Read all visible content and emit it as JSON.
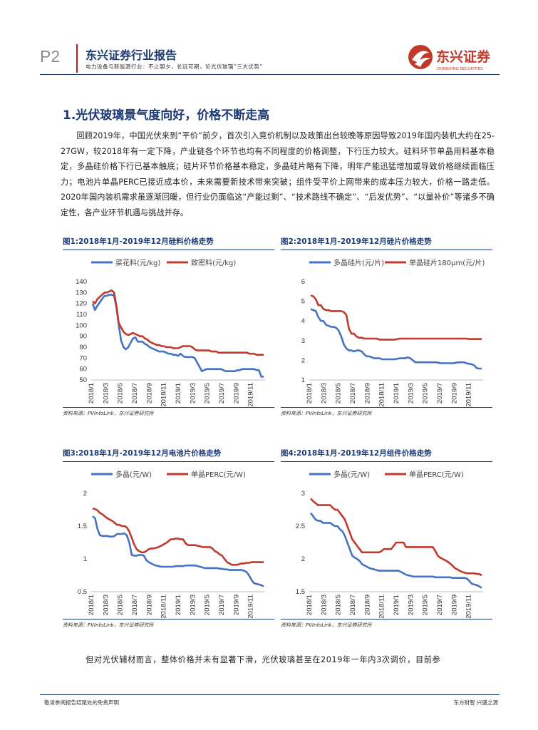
{
  "header": {
    "page_no": "P2",
    "brand": "东兴证券行业报告",
    "subtitle": "电力设备与新能源行业：不止朝夕，长远可期，论光伏玻璃“三大优势”",
    "logo_cn": "东兴证券",
    "logo_en": "DONGXING SECURITIES"
  },
  "section_title": "1.光伏玻璃景气度向好，价格不断走高",
  "paragraph": "回顾2019年，中国光伏来到“平价”前夕，首次引入竞价机制以及政策出台较晚等原因导致2019年国内装机大约在25-27GW，较2018年有一定下降，产业链各个环节也均有不同程度的价格调整，下行压力较大。硅料环节单晶用料基本稳定，多晶硅价格下行已基本触底；硅片环节价格基本稳定，多晶硅片略有下降，明年产能迅猛增加或导致价格继续面临压力；电池片单晶PERC已接近成本价，未来需要新技术带来突破；组件受平价上网带来的成本压力较大，价格一路走低。2020年国内装机需求虽逐渐回暖，但行业仍面临这“产能过剩”、“技术路线不确定”、“后发优势”、“以量补价”等诸多不确定性，各产业环节机遇与挑战并存。",
  "source_text": "资料来源：PVInfoLink，东兴证券研究所",
  "last_line": "但对光伏辅材而言，整体价格并未有显著下滑，光伏玻璃甚至在2019年一年内3次调价，目前参",
  "footer": {
    "left": "敬请参阅报告结尾处的免责声明",
    "right": "东方财智 兴盛之源"
  },
  "colors": {
    "navy": "#1c3a75",
    "blue": "#4472c4",
    "red": "#c0392b"
  },
  "chart_data": [
    {
      "type": "line",
      "title": "图1:2018年1月-2019年12月硅料价格走势",
      "x_ticks": [
        "2018/1",
        "2018/3",
        "2018/5",
        "2018/7",
        "2018/9",
        "2018/11",
        "2019/1",
        "2019/3",
        "2019/5",
        "2019/7",
        "2019/9",
        "2019/11"
      ],
      "ylim": [
        50,
        140
      ],
      "y_ticks": [
        "50",
        "60",
        "70",
        "80",
        "90",
        "100",
        "110",
        "120",
        "130",
        "140"
      ],
      "series": [
        {
          "name": "菜花料(元/kg)",
          "color": "#4472c4",
          "values": [
            120,
            114,
            118,
            121,
            124,
            127,
            127,
            128,
            128,
            127,
            117,
            100,
            86,
            80,
            78,
            80,
            84,
            88,
            89,
            85,
            85,
            85,
            83,
            82,
            80,
            79,
            78,
            77,
            76,
            76,
            76,
            75,
            74,
            74,
            73,
            73,
            72,
            74,
            72,
            71,
            71,
            71,
            71,
            70,
            66,
            62,
            58,
            59,
            60,
            60,
            60,
            60,
            60,
            60,
            60,
            59,
            58,
            58,
            58,
            58,
            58,
            59,
            59,
            60,
            60,
            60,
            60,
            60,
            60,
            59,
            59,
            53,
            53
          ]
        },
        {
          "name": "致密料(元/kg)",
          "color": "#c0392b",
          "values": [
            122,
            120,
            124,
            126,
            128,
            130,
            130,
            131,
            132,
            130,
            118,
            102,
            98,
            94,
            92,
            91,
            92,
            93,
            92,
            91,
            90,
            90,
            88,
            87,
            85,
            84,
            83,
            82,
            82,
            81,
            81,
            80,
            80,
            80,
            79,
            79,
            79,
            80,
            81,
            81,
            81,
            81,
            80,
            78,
            77,
            77,
            77,
            77,
            77,
            77,
            76,
            76,
            76,
            75,
            75,
            75,
            75,
            75,
            75,
            75,
            75,
            75,
            75,
            75,
            75,
            75,
            74,
            74,
            74,
            73,
            73,
            73,
            73
          ]
        }
      ]
    },
    {
      "type": "line",
      "title": "图2:2018年1月-2019年12月硅片价格走势",
      "x_ticks": [
        "2018/1",
        "2018/3",
        "2018/5",
        "2018/7",
        "2018/9",
        "2018/11",
        "2019/1",
        "2019/3",
        "2019/5",
        "2019/7",
        "2019/9",
        "2019/11"
      ],
      "ylim": [
        1,
        6
      ],
      "y_ticks": [
        "1",
        "2",
        "3",
        "4",
        "5",
        "6"
      ],
      "series": [
        {
          "name": "多晶硅片(元/片)",
          "color": "#4472c4",
          "values": [
            4.6,
            4.55,
            4.5,
            4.2,
            4.0,
            4.0,
            3.8,
            3.75,
            3.7,
            3.7,
            3.65,
            3.5,
            3.2,
            2.8,
            2.6,
            2.5,
            2.5,
            2.45,
            2.5,
            2.5,
            2.45,
            2.3,
            2.2,
            2.2,
            2.15,
            2.1,
            2.1,
            2.1,
            2.05,
            2.05,
            2.05,
            2.05,
            2.05,
            2.05,
            2.08,
            2.1,
            2.1,
            2.1,
            2.15,
            2.1,
            2.0,
            1.9,
            1.9,
            1.9,
            1.9,
            1.9,
            1.9,
            1.9,
            1.9,
            1.9,
            1.88,
            1.85,
            1.85,
            1.85,
            1.85,
            1.85,
            1.85,
            1.88,
            1.9,
            1.9,
            1.9,
            1.85,
            1.82,
            1.8,
            1.75,
            1.6,
            1.58,
            1.58
          ]
        },
        {
          "name": "单晶硅片180μm(元/片)",
          "color": "#c0392b",
          "values": [
            5.3,
            5.25,
            5.1,
            4.8,
            4.8,
            4.6,
            4.55,
            4.55,
            4.5,
            4.5,
            4.5,
            4.5,
            4.5,
            4.45,
            4.3,
            3.6,
            3.35,
            3.35,
            3.2,
            3.15,
            3.15,
            3.1,
            3.1,
            3.1,
            3.1,
            3.1,
            3.1,
            3.05,
            3.05,
            3.05,
            3.05,
            3.05,
            3.05,
            3.05,
            3.08,
            3.1,
            3.1,
            3.1,
            3.1,
            3.1,
            3.1,
            3.1,
            3.1,
            3.1,
            3.1,
            3.1,
            3.1,
            3.1,
            3.1,
            3.1,
            3.1,
            3.1,
            3.1,
            3.1,
            3.1,
            3.1,
            3.1,
            3.1,
            3.1,
            3.1,
            3.1,
            3.1,
            3.08,
            3.08,
            3.08,
            3.08,
            3.08,
            3.08
          ]
        }
      ]
    },
    {
      "type": "line",
      "title": "图3:2018年1月-2019年12月电池片价格走势",
      "x_ticks": [
        "2018/1",
        "2018/3",
        "2018/5",
        "2018/7",
        "2018/9",
        "2018/11",
        "2019/1",
        "2019/3",
        "2019/5",
        "2019/7",
        "2019/9",
        "2019/11"
      ],
      "ylim": [
        0.5,
        2
      ],
      "y_ticks": [
        "0.5",
        "1",
        "1.5",
        "2"
      ],
      "series": [
        {
          "name": "多晶(元/W)",
          "color": "#4472c4",
          "values": [
            1.65,
            1.62,
            1.45,
            1.36,
            1.35,
            1.35,
            1.35,
            1.34,
            1.34,
            1.35,
            1.38,
            1.38,
            1.38,
            1.39,
            1.36,
            1.25,
            1.06,
            1.05,
            1.05,
            1.06,
            1.06,
            1.05,
            0.98,
            0.95,
            0.93,
            0.91,
            0.9,
            0.89,
            0.88,
            0.88,
            0.88,
            0.88,
            0.88,
            0.88,
            0.89,
            0.89,
            0.89,
            0.89,
            0.9,
            0.9,
            0.9,
            0.9,
            0.9,
            0.89,
            0.88,
            0.87,
            0.86,
            0.86,
            0.86,
            0.86,
            0.86,
            0.86,
            0.85,
            0.85,
            0.84,
            0.84,
            0.83,
            0.83,
            0.83,
            0.83,
            0.83,
            0.83,
            0.82,
            0.8,
            0.75,
            0.68,
            0.63,
            0.62,
            0.61,
            0.6,
            0.58
          ]
        },
        {
          "name": "单晶PERC(元/W)",
          "color": "#c0392b",
          "values": [
            1.77,
            1.76,
            1.74,
            1.7,
            1.68,
            1.65,
            1.62,
            1.6,
            1.58,
            1.55,
            1.52,
            1.52,
            1.5,
            1.5,
            1.48,
            1.42,
            1.32,
            1.22,
            1.15,
            1.12,
            1.1,
            1.1,
            1.12,
            1.15,
            1.16,
            1.16,
            1.17,
            1.18,
            1.2,
            1.22,
            1.24,
            1.27,
            1.3,
            1.3,
            1.31,
            1.31,
            1.3,
            1.3,
            1.24,
            1.21,
            1.21,
            1.21,
            1.21,
            1.2,
            1.19,
            1.18,
            1.18,
            1.18,
            1.18,
            1.16,
            1.12,
            1.1,
            1.07,
            1.05,
            1.0,
            0.95,
            0.93,
            0.91,
            0.91,
            0.91,
            0.92,
            0.93,
            0.93,
            0.94,
            0.94,
            0.95,
            0.95,
            0.95,
            0.95,
            0.95,
            0.95
          ]
        }
      ]
    },
    {
      "type": "line",
      "title": "图4:2018年1月-2019年12月组件价格走势",
      "x_ticks": [
        "2018/1",
        "2018/3",
        "2018/5",
        "2018/7",
        "2018/9",
        "2018/11",
        "2019/1",
        "2019/3",
        "2019/5",
        "2019/7",
        "2019/9",
        "2019/11"
      ],
      "ylim": [
        1.5,
        3
      ],
      "y_ticks": [
        "1.5",
        "2",
        "2.5",
        "3"
      ],
      "series": [
        {
          "name": "多晶(元/W)",
          "color": "#4472c4",
          "values": [
            2.7,
            2.65,
            2.6,
            2.58,
            2.58,
            2.55,
            2.55,
            2.55,
            2.55,
            2.52,
            2.5,
            2.5,
            2.45,
            2.42,
            2.35,
            2.25,
            2.15,
            2.05,
            2.02,
            2.0,
            1.97,
            1.92,
            1.9,
            1.88,
            1.86,
            1.85,
            1.84,
            1.83,
            1.82,
            1.82,
            1.82,
            1.82,
            1.82,
            1.82,
            1.82,
            1.82,
            1.82,
            1.8,
            1.78,
            1.76,
            1.75,
            1.74,
            1.73,
            1.73,
            1.73,
            1.73,
            1.73,
            1.73,
            1.73,
            1.73,
            1.73,
            1.72,
            1.72,
            1.72,
            1.72,
            1.72,
            1.72,
            1.72,
            1.71,
            1.71,
            1.71,
            1.71,
            1.71,
            1.71,
            1.7,
            1.66,
            1.62,
            1.61,
            1.6,
            1.58,
            1.56
          ]
        },
        {
          "name": "单晶PERC(元/W)",
          "color": "#c0392b",
          "values": [
            2.92,
            2.88,
            2.85,
            2.82,
            2.82,
            2.82,
            2.82,
            2.82,
            2.82,
            2.78,
            2.75,
            2.75,
            2.7,
            2.65,
            2.6,
            2.5,
            2.4,
            2.3,
            2.25,
            2.2,
            2.15,
            2.1,
            2.1,
            2.1,
            2.1,
            2.1,
            2.1,
            2.1,
            2.1,
            2.12,
            2.15,
            2.15,
            2.15,
            2.15,
            2.2,
            2.25,
            2.25,
            2.25,
            2.25,
            2.18,
            2.18,
            2.18,
            2.18,
            2.18,
            2.18,
            2.18,
            2.18,
            2.18,
            2.18,
            2.18,
            2.18,
            2.12,
            2.05,
            2.02,
            2.0,
            1.98,
            1.96,
            1.93,
            1.9,
            1.86,
            1.84,
            1.82,
            1.8,
            1.79,
            1.78,
            1.78,
            1.78,
            1.78,
            1.77,
            1.77,
            1.75
          ]
        }
      ]
    }
  ]
}
